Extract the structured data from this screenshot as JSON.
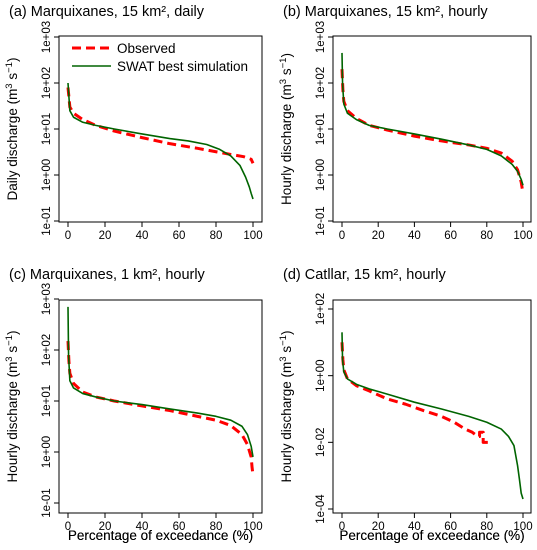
{
  "xlabel": "Percentage of exceedance (%)",
  "legend": {
    "observed": "Observed",
    "simulated": "SWAT best simulation",
    "observed_color": "#ff0000",
    "simulated_color": "#006400",
    "placement": "top-left of panel (a)"
  },
  "chart_data": [
    {
      "type": "line",
      "title": "(a) Marquixanes, 15 km², daily",
      "ylabel": "Daily discharge (m",
      "ylabel_unit": "3",
      "ylabel_mid": " s",
      "ylabel_exp": "−1",
      "ylabel_end": ")",
      "y_scale": "log",
      "xlim": [
        0,
        100
      ],
      "ylim": [
        0.1,
        1000
      ],
      "x_ticks": [
        "0",
        "20",
        "40",
        "60",
        "80",
        "100"
      ],
      "y_ticks": [
        "1e-01",
        "1e+00",
        "1e+01",
        "1e+02",
        "1e+03"
      ],
      "series": [
        {
          "name": "Observed",
          "x": [
            0,
            1,
            3,
            8,
            15,
            25,
            40,
            55,
            70,
            80,
            88,
            95,
            99,
            100
          ],
          "y": [
            80,
            30,
            22,
            16,
            12,
            9,
            6.5,
            4.8,
            3.8,
            3.2,
            2.8,
            2.5,
            2.2,
            1.8
          ]
        },
        {
          "name": "SWAT best simulation",
          "x": [
            0,
            1,
            3,
            8,
            15,
            25,
            40,
            55,
            65,
            75,
            82,
            88,
            93,
            96,
            98,
            99,
            100
          ],
          "y": [
            100,
            25,
            18,
            14,
            12,
            10,
            7.8,
            6.2,
            5.5,
            4.6,
            3.6,
            2.6,
            1.6,
            0.9,
            0.55,
            0.4,
            0.3
          ]
        }
      ]
    },
    {
      "type": "line",
      "title": "(b) Marquixanes, 15 km², hourly",
      "ylabel": "Hourly discharge (m",
      "ylabel_unit": "3",
      "ylabel_mid": " s",
      "ylabel_exp": "−1",
      "ylabel_end": ")",
      "y_scale": "log",
      "xlim": [
        0,
        100
      ],
      "ylim": [
        0.1,
        1000
      ],
      "x_ticks": [
        "0",
        "20",
        "40",
        "60",
        "80",
        "100"
      ],
      "y_ticks": [
        "1e-01",
        "1e+00",
        "1e+01",
        "1e+02",
        "1e+03"
      ],
      "series": [
        {
          "name": "Observed",
          "x": [
            0,
            0.5,
            1,
            3,
            8,
            15,
            25,
            40,
            55,
            70,
            80,
            88,
            94,
            97,
            99,
            100
          ],
          "y": [
            200,
            70,
            40,
            25,
            17,
            12,
            9.5,
            7,
            5.5,
            4.5,
            3.8,
            3,
            2,
            1.3,
            0.7,
            0.4
          ]
        },
        {
          "name": "SWAT best simulation",
          "x": [
            0,
            0.3,
            1,
            3,
            8,
            15,
            25,
            40,
            55,
            70,
            80,
            88,
            94,
            97,
            99,
            100
          ],
          "y": [
            450,
            100,
            35,
            22,
            16,
            12,
            10,
            7.8,
            6,
            4.5,
            3.6,
            2.6,
            1.7,
            1.2,
            0.8,
            0.6
          ]
        }
      ]
    },
    {
      "type": "line",
      "title": "(c) Marquixanes, 1 km², hourly",
      "ylabel": "Hourly discharge (m",
      "ylabel_unit": "3",
      "ylabel_mid": " s",
      "ylabel_exp": "−1",
      "ylabel_end": ")",
      "y_scale": "log",
      "xlim": [
        0,
        100
      ],
      "ylim": [
        0.1,
        1000
      ],
      "x_ticks": [
        "0",
        "20",
        "40",
        "60",
        "80",
        "100"
      ],
      "y_ticks": [
        "1e-01",
        "1e+00",
        "1e+01",
        "1e+02",
        "1e+03"
      ],
      "series": [
        {
          "name": "Observed",
          "x": [
            0,
            0.5,
            1,
            3,
            8,
            15,
            25,
            40,
            55,
            70,
            80,
            88,
            94,
            97,
            99,
            99.5,
            100
          ],
          "y": [
            150,
            60,
            35,
            22,
            15,
            12,
            10,
            8,
            6.5,
            5,
            4.2,
            3.3,
            2.2,
            1.4,
            0.8,
            0.5,
            0.35
          ]
        },
        {
          "name": "SWAT best simulation",
          "x": [
            0,
            0.3,
            1,
            3,
            8,
            15,
            25,
            40,
            55,
            70,
            80,
            88,
            94,
            97,
            99,
            100
          ],
          "y": [
            700,
            80,
            25,
            18,
            14,
            12,
            10,
            8.5,
            7,
            5.8,
            5,
            4.2,
            3.2,
            2.2,
            1.3,
            0.8
          ]
        }
      ]
    },
    {
      "type": "line",
      "title": "(d) Catllar, 15 km², hourly",
      "ylabel": "Hourly discharge (m",
      "ylabel_unit": "3",
      "ylabel_mid": " s",
      "ylabel_exp": "−1",
      "ylabel_end": ")",
      "y_scale": "log",
      "xlim": [
        0,
        100
      ],
      "ylim": [
        0.0001,
        100
      ],
      "x_ticks": [
        "0",
        "20",
        "40",
        "60",
        "80",
        "100"
      ],
      "y_ticks": [
        "1e-04",
        "1e-02",
        "1e+00",
        "1e+02"
      ],
      "series": [
        {
          "name": "Observed",
          "x": [
            0,
            0.5,
            1,
            3,
            8,
            15,
            25,
            35,
            45,
            55,
            62,
            68,
            72,
            75,
            76,
            76,
            78,
            78,
            80,
            82
          ],
          "y": [
            10,
            3,
            1.5,
            0.8,
            0.5,
            0.35,
            0.2,
            0.14,
            0.09,
            0.06,
            0.04,
            0.025,
            0.02,
            0.015,
            0.015,
            0.02,
            0.02,
            0.01,
            0.01,
            0.01
          ]
        },
        {
          "name": "SWAT best simulation",
          "x": [
            0,
            0.3,
            1,
            3,
            8,
            15,
            25,
            40,
            55,
            70,
            80,
            88,
            92,
            95,
            97,
            98,
            99,
            100
          ],
          "y": [
            20,
            3,
            1.3,
            0.8,
            0.55,
            0.4,
            0.28,
            0.16,
            0.1,
            0.06,
            0.04,
            0.025,
            0.015,
            0.008,
            0.002,
            0.0008,
            0.0003,
            0.0002
          ]
        }
      ]
    }
  ]
}
